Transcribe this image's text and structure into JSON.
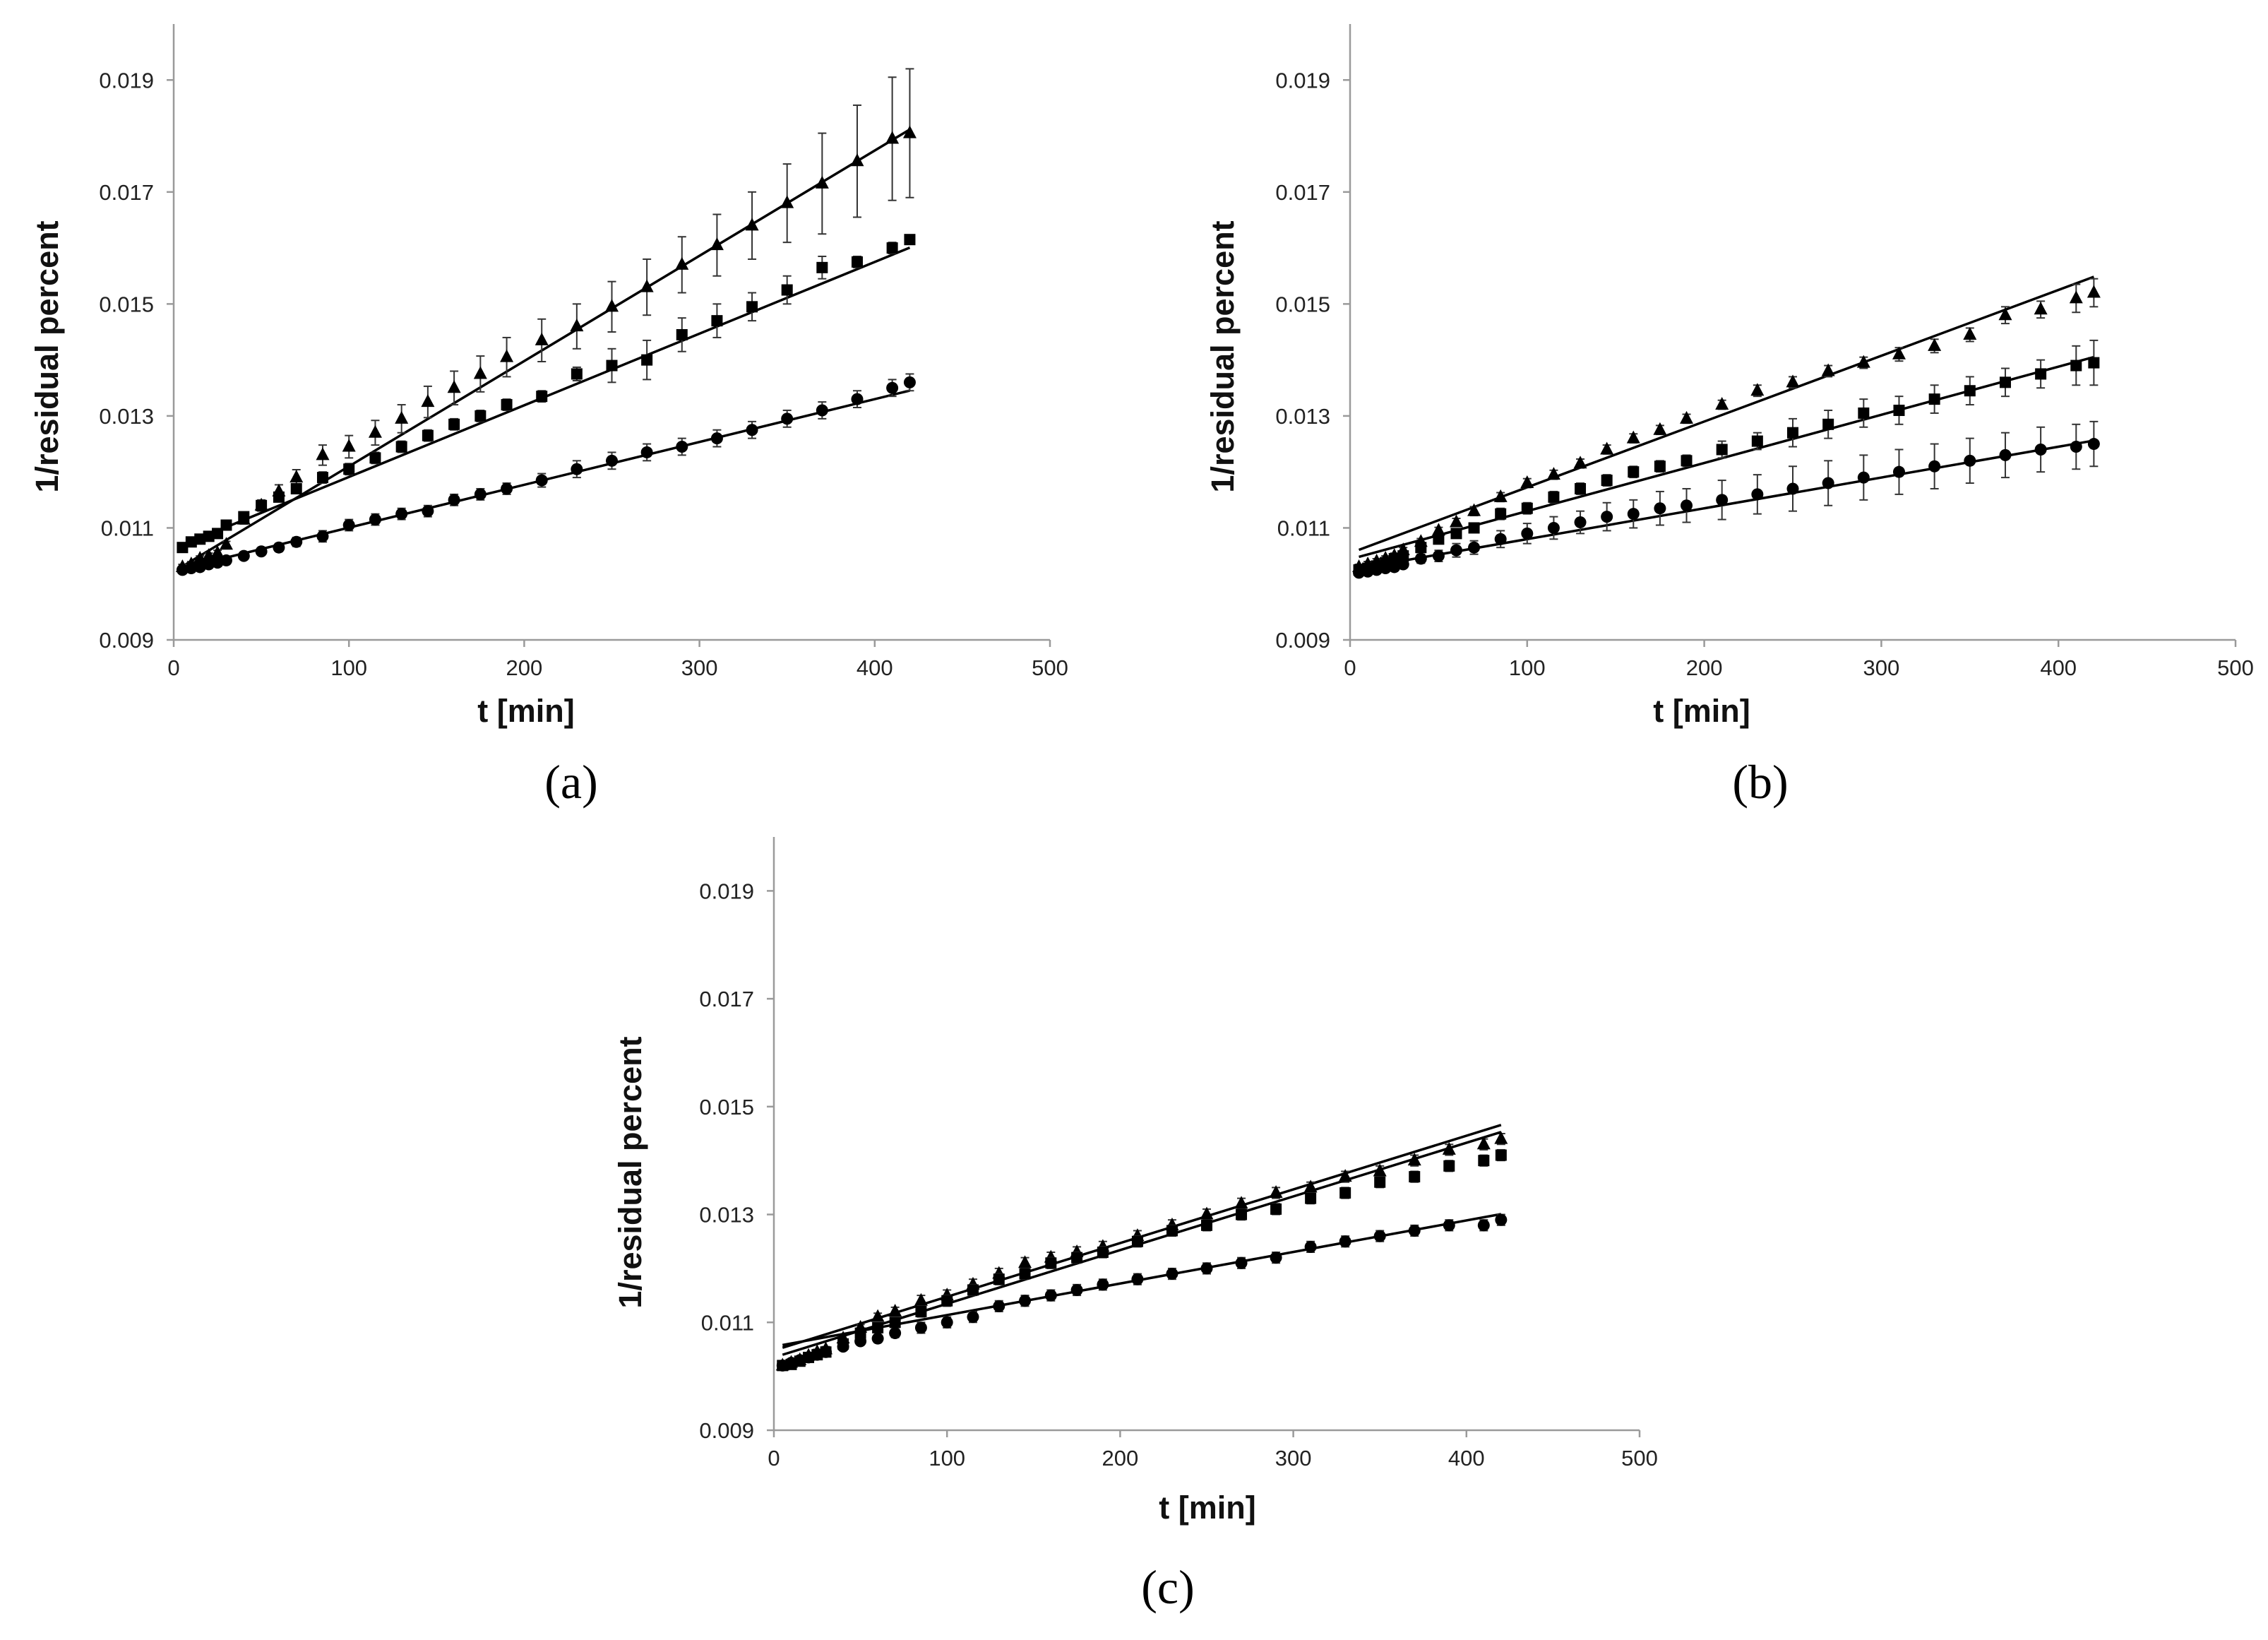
{
  "colors": {
    "ink": "#000000",
    "axis": "#9a9a9a",
    "background": "#ffffff"
  },
  "chart_data": [
    {
      "type": "scatter",
      "label": "(a)",
      "xlabel": "t [min]",
      "ylabel": "1/residual percent",
      "xlim": [
        0,
        500
      ],
      "ylim": [
        0.009,
        0.02
      ],
      "xticks": [
        "0",
        "100",
        "200",
        "300",
        "400",
        "500"
      ],
      "yticks": [
        "0.009",
        "0.011",
        "0.013",
        "0.015",
        "0.017",
        "0.019"
      ],
      "x": [
        5,
        10,
        15,
        20,
        25,
        30,
        40,
        50,
        60,
        70,
        85,
        100,
        115,
        130,
        145,
        160,
        175,
        190,
        210,
        230,
        250,
        270,
        290,
        310,
        330,
        350,
        370,
        390,
        410,
        420
      ],
      "series": [
        {
          "name": "triangles",
          "marker": "triangle",
          "fit": [
            0.01022,
            1.88e-05
          ],
          "values": [
            0.0103,
            0.01035,
            0.01045,
            0.0105,
            0.01055,
            0.0107,
            0.01115,
            0.0114,
            0.01165,
            0.0119,
            0.0123,
            0.01245,
            0.0127,
            0.01295,
            0.01325,
            0.0135,
            0.01375,
            0.01405,
            0.01435,
            0.0146,
            0.01495,
            0.0153,
            0.0157,
            0.01605,
            0.0164,
            0.0168,
            0.01715,
            0.01755,
            0.01795,
            0.01805
          ],
          "errors": [
            5e-05,
            5e-05,
            5e-05,
            5e-05,
            5e-05,
            6e-05,
            8e-05,
            0.0001,
            0.00012,
            0.00014,
            0.00018,
            0.0002,
            0.00022,
            0.00025,
            0.00028,
            0.0003,
            0.00032,
            0.00035,
            0.00038,
            0.0004,
            0.00045,
            0.0005,
            0.0005,
            0.00055,
            0.0006,
            0.0007,
            0.0009,
            0.001,
            0.0011,
            0.00115
          ]
        },
        {
          "name": "squares",
          "marker": "square",
          "fit": [
            0.01063,
            1.28e-05
          ],
          "values": [
            0.01065,
            0.01075,
            0.0108,
            0.01085,
            0.0109,
            0.01105,
            0.0112,
            0.0114,
            0.01155,
            0.0117,
            0.0119,
            0.01205,
            0.01225,
            0.01245,
            0.01265,
            0.01285,
            0.013,
            0.0132,
            0.01335,
            0.01375,
            0.0139,
            0.014,
            0.01445,
            0.0147,
            0.01495,
            0.01525,
            0.01565,
            0.01575,
            0.016,
            0.01615
          ],
          "errors": [
            5e-05,
            5e-05,
            5e-05,
            5e-05,
            5e-05,
            5e-05,
            6e-05,
            6e-05,
            7e-05,
            8e-05,
            0.0001,
            0.0001,
            0.0001,
            0.0001,
            0.0001,
            0.0001,
            0.0001,
            0.0001,
            0.0001,
            0.00012,
            0.0003,
            0.00035,
            0.0003,
            0.0003,
            0.00025,
            0.00025,
            0.0002,
            0.0001,
            0.0001,
            5e-05
          ]
        },
        {
          "name": "circles",
          "marker": "circle",
          "fit": [
            0.01024,
            7.65e-06
          ],
          "values": [
            0.01025,
            0.01028,
            0.0103,
            0.01035,
            0.01038,
            0.01042,
            0.0105,
            0.01058,
            0.01065,
            0.01075,
            0.01085,
            0.01105,
            0.01115,
            0.01125,
            0.0113,
            0.0115,
            0.0116,
            0.0117,
            0.01185,
            0.01205,
            0.0122,
            0.01235,
            0.01245,
            0.0126,
            0.01275,
            0.01295,
            0.0131,
            0.0133,
            0.0135,
            0.0136
          ],
          "errors": [
            5e-05,
            5e-05,
            5e-05,
            5e-05,
            5e-05,
            5e-05,
            6e-05,
            6e-05,
            7e-05,
            8e-05,
            0.0001,
            0.0001,
            0.0001,
            0.0001,
            0.0001,
            0.0001,
            0.0001,
            0.0001,
            0.00012,
            0.00015,
            0.00015,
            0.00015,
            0.00015,
            0.00015,
            0.00015,
            0.00015,
            0.00015,
            0.00015,
            0.00015,
            0.00015
          ]
        }
      ]
    },
    {
      "type": "scatter",
      "label": "(b)",
      "xlabel": "t [min]",
      "ylabel": "1/residual percent",
      "xlim": [
        0,
        500
      ],
      "ylim": [
        0.009,
        0.02
      ],
      "xticks": [
        "0",
        "100",
        "200",
        "300",
        "400",
        "500"
      ],
      "yticks": [
        "0.009",
        "0.011",
        "0.013",
        "0.015",
        "0.017",
        "0.019"
      ],
      "x": [
        5,
        10,
        15,
        20,
        25,
        30,
        40,
        50,
        60,
        70,
        85,
        100,
        115,
        130,
        145,
        160,
        175,
        190,
        210,
        230,
        250,
        270,
        290,
        310,
        330,
        350,
        370,
        390,
        410,
        420
      ],
      "series": [
        {
          "name": "triangles",
          "marker": "triangle",
          "fit": [
            0.01055,
            1.175e-05
          ],
          "values": [
            0.0103,
            0.01035,
            0.0104,
            0.01045,
            0.0105,
            0.0106,
            0.01075,
            0.01095,
            0.0111,
            0.0113,
            0.01155,
            0.0118,
            0.01195,
            0.01215,
            0.0124,
            0.0126,
            0.01275,
            0.01295,
            0.0132,
            0.01345,
            0.0136,
            0.0138,
            0.01395,
            0.0141,
            0.01425,
            0.01445,
            0.0148,
            0.0149,
            0.0151,
            0.0152
          ],
          "errors": [
            5e-05,
            5e-05,
            5e-05,
            5e-05,
            5e-05,
            5e-05,
            6e-05,
            6e-05,
            7e-05,
            8e-05,
            8e-05,
            8e-05,
            8e-05,
            8e-05,
            8e-05,
            8e-05,
            8e-05,
            8e-05,
            8e-05,
            0.0001,
            0.0001,
            0.0001,
            0.0001,
            0.00012,
            0.00012,
            0.00012,
            0.00015,
            0.00015,
            0.00025,
            0.00025
          ]
        },
        {
          "name": "squares",
          "marker": "square",
          "fit": [
            0.01044,
            8.6e-06
          ],
          "values": [
            0.01025,
            0.01028,
            0.01032,
            0.01038,
            0.01045,
            0.0105,
            0.01065,
            0.0108,
            0.0109,
            0.011,
            0.01125,
            0.01135,
            0.01155,
            0.0117,
            0.01185,
            0.012,
            0.0121,
            0.0122,
            0.0124,
            0.01255,
            0.0127,
            0.01285,
            0.01305,
            0.0131,
            0.0133,
            0.01345,
            0.0136,
            0.01375,
            0.0139,
            0.01395
          ],
          "errors": [
            5e-05,
            5e-05,
            5e-05,
            5e-05,
            5e-05,
            5e-05,
            6e-05,
            6e-05,
            7e-05,
            8e-05,
            0.0001,
            0.0001,
            0.0001,
            0.0001,
            0.0001,
            0.0001,
            0.0001,
            0.0001,
            0.00015,
            0.00015,
            0.00025,
            0.00025,
            0.00025,
            0.00025,
            0.00025,
            0.00025,
            0.00025,
            0.00025,
            0.00035,
            0.0004
          ]
        },
        {
          "name": "circles",
          "marker": "circle",
          "fit": [
            0.01025,
            5.5e-06
          ],
          "values": [
            0.0102,
            0.01022,
            0.01025,
            0.01028,
            0.0103,
            0.01035,
            0.01045,
            0.0105,
            0.0106,
            0.01065,
            0.0108,
            0.0109,
            0.011,
            0.0111,
            0.0112,
            0.01125,
            0.01135,
            0.0114,
            0.0115,
            0.0116,
            0.0117,
            0.0118,
            0.0119,
            0.012,
            0.0121,
            0.0122,
            0.0123,
            0.0124,
            0.01245,
            0.0125
          ],
          "errors": [
            5e-05,
            5e-05,
            5e-05,
            5e-05,
            5e-05,
            6e-05,
            8e-05,
            0.0001,
            0.00012,
            0.00012,
            0.00015,
            0.00018,
            0.0002,
            0.0002,
            0.00025,
            0.00025,
            0.0003,
            0.0003,
            0.00035,
            0.00035,
            0.0004,
            0.0004,
            0.0004,
            0.0004,
            0.0004,
            0.0004,
            0.0004,
            0.0004,
            0.0004,
            0.0004
          ]
        }
      ]
    },
    {
      "type": "scatter",
      "label": "(c)",
      "xlabel": "t [min]",
      "ylabel": "1/residual percent",
      "xlim": [
        0,
        500
      ],
      "ylim": [
        0.009,
        0.02
      ],
      "xticks": [
        "0",
        "100",
        "200",
        "300",
        "400",
        "500"
      ],
      "yticks": [
        "0.009",
        "0.011",
        "0.013",
        "0.015",
        "0.017",
        "0.019"
      ],
      "x": [
        5,
        10,
        15,
        20,
        25,
        30,
        40,
        50,
        60,
        70,
        85,
        100,
        115,
        130,
        145,
        160,
        175,
        190,
        210,
        230,
        250,
        270,
        290,
        310,
        330,
        350,
        370,
        390,
        410,
        420
      ],
      "series": [
        {
          "name": "triangles",
          "marker": "triangle",
          "fit": [
            0.01048,
            9.95e-06
          ],
          "values": [
            0.0102,
            0.01025,
            0.0103,
            0.01038,
            0.01045,
            0.0105,
            0.0107,
            0.0109,
            0.0111,
            0.0112,
            0.0114,
            0.0115,
            0.0117,
            0.0119,
            0.0121,
            0.0122,
            0.0123,
            0.0124,
            0.0126,
            0.0128,
            0.013,
            0.0132,
            0.0134,
            0.0135,
            0.0137,
            0.0138,
            0.014,
            0.0142,
            0.0143,
            0.0144
          ],
          "errors": [
            5e-05,
            5e-05,
            5e-05,
            5e-05,
            5e-05,
            5e-05,
            6e-05,
            6e-05,
            7e-05,
            8e-05,
            0.0001,
            0.0001,
            0.0001,
            0.0001,
            0.0001,
            0.0001,
            0.0001,
            0.0001,
            0.0001,
            0.0001,
            0.0001,
            0.0001,
            0.0001,
            0.0001,
            0.0001,
            0.0001,
            0.0001,
            0.0001,
            0.0001,
            0.0001
          ]
        },
        {
          "name": "squares",
          "marker": "square",
          "fit": [
            0.01035,
            9.95e-06
          ],
          "values": [
            0.0102,
            0.01022,
            0.01028,
            0.01035,
            0.0104,
            0.01045,
            0.0106,
            0.0108,
            0.0109,
            0.011,
            0.0112,
            0.0114,
            0.0116,
            0.0118,
            0.0119,
            0.0121,
            0.0122,
            0.0123,
            0.0125,
            0.0127,
            0.0128,
            0.013,
            0.0131,
            0.0133,
            0.0134,
            0.0136,
            0.0137,
            0.0139,
            0.014,
            0.0141
          ],
          "errors": [
            5e-05,
            5e-05,
            5e-05,
            5e-05,
            5e-05,
            5e-05,
            6e-05,
            6e-05,
            7e-05,
            8e-05,
            0.0001,
            0.0001,
            0.0001,
            0.0001,
            0.0001,
            0.0001,
            0.0001,
            0.0001,
            0.0001,
            0.0001,
            0.0001,
            0.0001,
            0.0001,
            0.0001,
            0.0001,
            0.0001,
            0.0001,
            0.0001,
            0.0001,
            0.0001
          ]
        },
        {
          "name": "circles",
          "marker": "circle",
          "fit": [
            0.01055,
            5.85e-06
          ],
          "values": [
            0.0102,
            0.01025,
            0.0103,
            0.01035,
            0.0104,
            0.01045,
            0.01055,
            0.01065,
            0.0107,
            0.0108,
            0.0109,
            0.011,
            0.0111,
            0.0113,
            0.0114,
            0.0115,
            0.0116,
            0.0117,
            0.0118,
            0.0119,
            0.012,
            0.0121,
            0.0122,
            0.0124,
            0.0125,
            0.0126,
            0.0127,
            0.0128,
            0.0128,
            0.0129
          ],
          "errors": [
            5e-05,
            5e-05,
            5e-05,
            5e-05,
            5e-05,
            5e-05,
            6e-05,
            6e-05,
            7e-05,
            8e-05,
            0.0001,
            0.0001,
            0.0001,
            0.0001,
            0.0001,
            0.0001,
            0.0001,
            0.0001,
            0.0001,
            0.0001,
            0.0001,
            0.0001,
            0.0001,
            0.0001,
            0.0001,
            0.0001,
            0.0001,
            0.0001,
            0.0001,
            0.0001
          ]
        }
      ]
    }
  ]
}
